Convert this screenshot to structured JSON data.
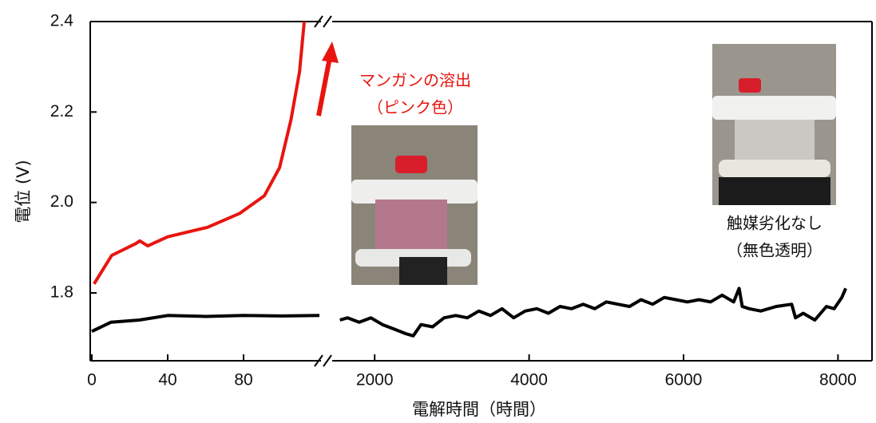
{
  "chart_data": {
    "type": "line",
    "x_label": "電解時間（時間）",
    "y_label": "電位 (V)",
    "ylim": [
      1.65,
      2.4
    ],
    "yticks": [
      1.8,
      {
        "value": 2,
        "label": "2.0"
      },
      2.2,
      2.4
    ],
    "x_segments": [
      {
        "xlim": [
          0,
          120
        ],
        "xticks": [
          0,
          40,
          80
        ]
      },
      {
        "xlim": [
          1450,
          8420
        ],
        "xticks": [
          2000,
          4000,
          6000,
          8000
        ]
      }
    ],
    "series": [
      {
        "color": "#e8150f",
        "x": [
          1.2,
          10.5,
          23.2,
          25.3,
          29.5,
          40,
          61,
          78,
          91,
          99,
          105,
          109.5,
          112
        ],
        "values": [
          1.82,
          1.883,
          1.909,
          1.915,
          1.904,
          1.924,
          1.945,
          1.976,
          2.015,
          2.077,
          2.183,
          2.289,
          2.4
        ]
      },
      {
        "color": "#000000",
        "x": [
          0,
          10,
          25,
          40,
          60,
          80,
          100,
          120,
          1550,
          1650,
          1800,
          1950,
          2100,
          2250,
          2400,
          2500,
          2600,
          2750,
          2900,
          3050,
          3200,
          3350,
          3500,
          3650,
          3800,
          3950,
          4100,
          4250,
          4400,
          4550,
          4700,
          4850,
          5000,
          5150,
          5300,
          5450,
          5600,
          5750,
          5900,
          6050,
          6200,
          6350,
          6500,
          6650,
          6720,
          6760,
          6850,
          7000,
          7200,
          7400,
          7450,
          7550,
          7700,
          7850,
          7950,
          8050,
          8100
        ],
        "values": [
          1.715,
          1.735,
          1.74,
          1.75,
          1.748,
          1.75,
          1.749,
          1.75,
          1.74,
          1.745,
          1.735,
          1.745,
          1.73,
          1.72,
          1.71,
          1.705,
          1.73,
          1.725,
          1.745,
          1.75,
          1.745,
          1.76,
          1.75,
          1.765,
          1.745,
          1.76,
          1.765,
          1.755,
          1.77,
          1.765,
          1.775,
          1.765,
          1.78,
          1.775,
          1.77,
          1.785,
          1.775,
          1.79,
          1.785,
          1.78,
          1.785,
          1.78,
          1.795,
          1.78,
          1.81,
          1.77,
          1.765,
          1.76,
          1.77,
          1.775,
          1.745,
          1.755,
          1.74,
          1.77,
          1.765,
          1.79,
          1.81
        ]
      }
    ],
    "annotations": [
      "マンガンの溶出",
      "（ピンク色）",
      "触媒劣化なし",
      "（無色透明）"
    ]
  }
}
